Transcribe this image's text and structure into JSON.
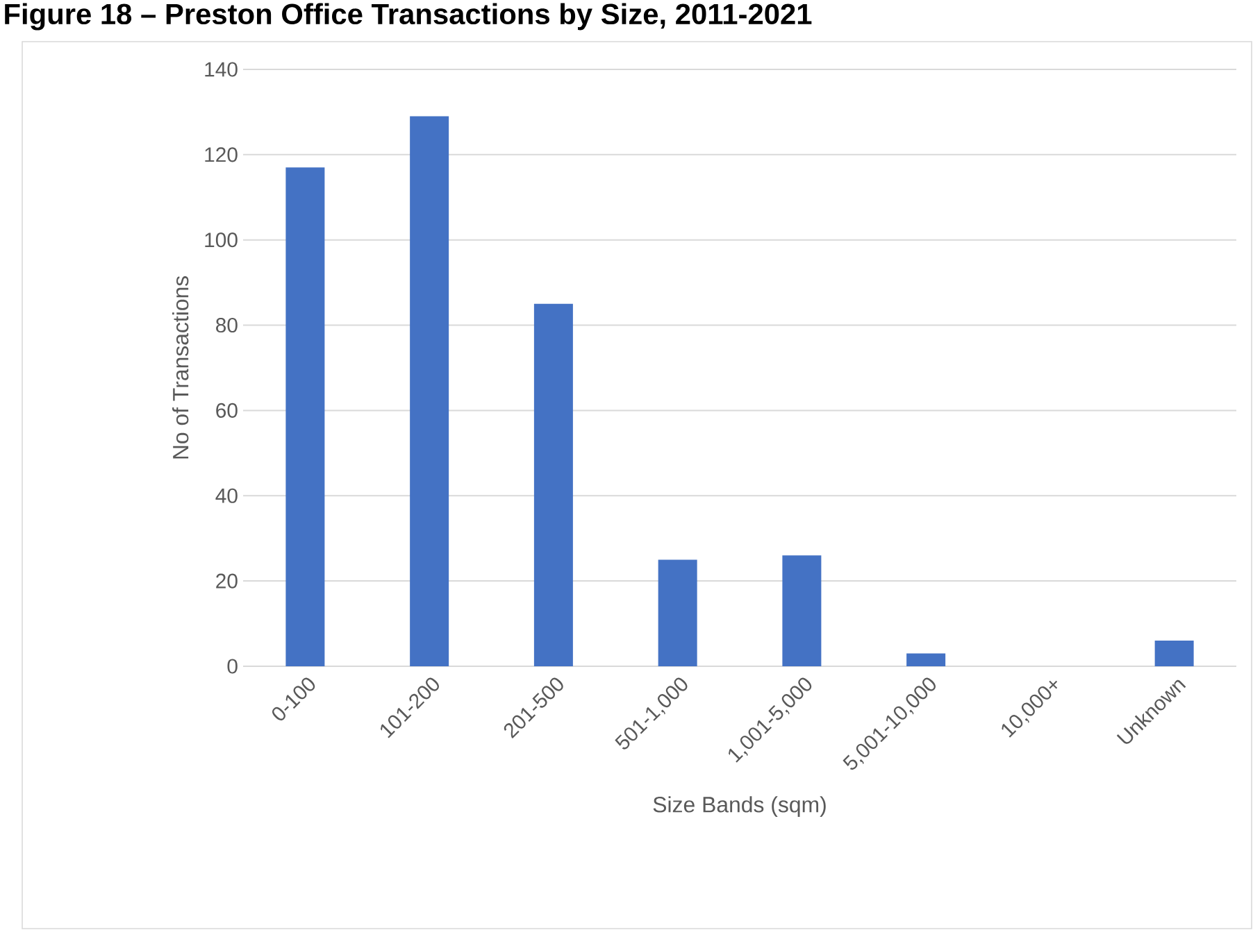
{
  "chart_data": {
    "type": "bar",
    "title": "Figure 18 – Preston Office Transactions by Size, 2011-2021",
    "xlabel": "Size Bands (sqm)",
    "ylabel": "No of Transactions",
    "categories": [
      "0-100",
      "101-200",
      "201-500",
      "501-1,000",
      "1,001-5,000",
      "5,001-10,000",
      "10,000+",
      "Unknown"
    ],
    "values": [
      117,
      129,
      85,
      25,
      26,
      3,
      0,
      6
    ],
    "color": "#4472c4",
    "ylim": [
      0,
      140
    ],
    "yticks": [
      0,
      20,
      40,
      60,
      80,
      100,
      120,
      140
    ],
    "grid": "y"
  }
}
